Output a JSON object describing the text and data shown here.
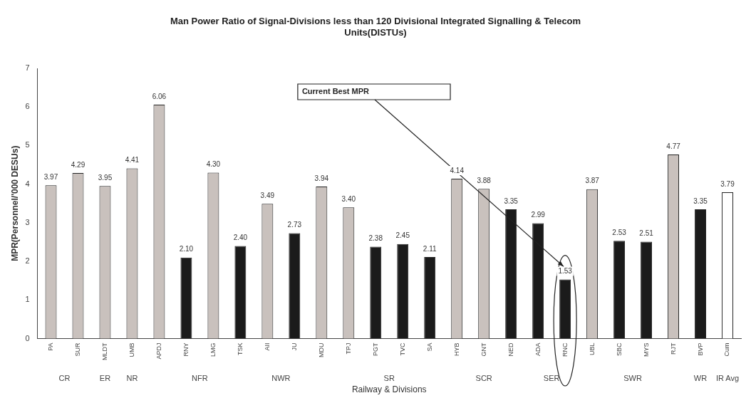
{
  "chart_data": {
    "type": "bar",
    "title": "Man Power Ratio of Signal-Divisions less than 120 Divisional Integrated Signalling & Telecom Units(DISTUs)",
    "xlabel": "Railway & Divisions",
    "ylabel": "MPR(Personnel/'000 DESUs)",
    "categories": [
      "PA",
      "SUR",
      "MLDT",
      "UMB",
      "APDJ",
      "RNY",
      "LMG",
      "TSK",
      "AII",
      "JU",
      "MDU",
      "TPJ",
      "PGT",
      "TVC",
      "SA",
      "HYB",
      "GNT",
      "NED",
      "ADA",
      "RNC",
      "UBL",
      "SBC",
      "MYS",
      "RJT",
      "BVP",
      "Cum"
    ],
    "values": [
      3.97,
      4.29,
      3.95,
      4.41,
      6.06,
      2.1,
      4.3,
      2.4,
      3.49,
      2.73,
      3.94,
      3.4,
      2.38,
      2.45,
      2.11,
      4.14,
      3.88,
      3.35,
      2.99,
      1.53,
      3.87,
      2.53,
      2.51,
      4.77,
      3.35,
      3.79
    ],
    "value_labels": [
      "3.97",
      "4.29",
      "3.95",
      "4.41",
      "6.06",
      "2.10",
      "4.30",
      "2.40",
      "3.49",
      "2.73",
      "3.94",
      "3.40",
      "2.38",
      "2.45",
      "2.11",
      "4.14",
      "3.88",
      "3.35",
      "2.99",
      "1.53",
      "3.87",
      "2.53",
      "2.51",
      "4.77",
      "3.35",
      "3.79"
    ],
    "colors": [
      "#c9c1bd",
      "#c9c1bd",
      "#c9c1bd",
      "#c9c1bd",
      "#c9c1bd",
      "#1b1b1b",
      "#c9c1bd",
      "#1b1b1b",
      "#c9c1bd",
      "#1b1b1b",
      "#c9c1bd",
      "#c9c1bd",
      "#1b1b1b",
      "#1b1b1b",
      "#1b1b1b",
      "#c9c1bd",
      "#c9c1bd",
      "#1b1b1b",
      "#1b1b1b",
      "#1b1b1b",
      "#c9c1bd",
      "#1b1b1b",
      "#1b1b1b",
      "#c9c1bd",
      "#1b1b1b",
      "#ffffff"
    ],
    "ylim": [
      0,
      7
    ],
    "yticks": [
      0,
      1,
      2,
      3,
      4,
      5,
      6,
      7
    ],
    "grid": false,
    "legend": false,
    "annotations": [
      "Current Best MPR",
      "CR",
      "ER",
      "NR",
      "NFR",
      "NWR",
      "SR",
      "SCR",
      "SER",
      "SWR",
      "WR",
      "IR Avg"
    ]
  }
}
